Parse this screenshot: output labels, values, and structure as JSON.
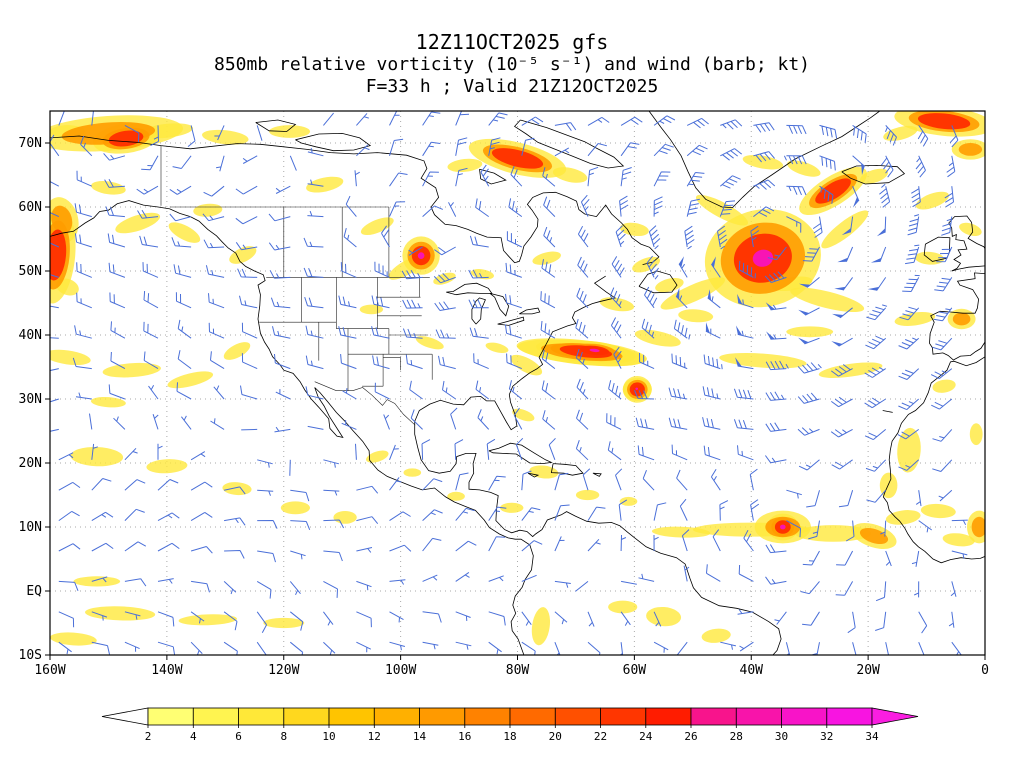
{
  "title": {
    "line1": "12Z11OCT2025 gfs",
    "line2": "850mb relative vorticity (10⁻⁵ s⁻¹) and wind (barb; kt)",
    "line3": "F=33 h ; Valid 21Z12OCT2025"
  },
  "chart_data": {
    "type": "filled_contour_map_with_wind_barbs",
    "model": "gfs",
    "init_time": "12Z11OCT2025",
    "forecast_hour": "F=33 h",
    "valid_time": "21Z12OCT2025",
    "field": "850mb relative vorticity (10⁻⁵ s⁻¹)",
    "overlay": "wind (barb; kt)",
    "lon_range": [
      -160,
      0
    ],
    "lat_range": [
      -10,
      75
    ],
    "grid": "dotted",
    "x_axis": {
      "label_ticks": [
        "160W",
        "140W",
        "120W",
        "100W",
        "80W",
        "60W",
        "40W",
        "20W",
        "0"
      ],
      "lon_values": [
        -160,
        -140,
        -120,
        -100,
        -80,
        -60,
        -40,
        -20,
        0
      ]
    },
    "y_axis": {
      "label_ticks": [
        "70N",
        "60N",
        "50N",
        "40N",
        "30N",
        "20N",
        "10N",
        "EQ",
        "10S"
      ],
      "lat_values": [
        70,
        60,
        50,
        40,
        30,
        20,
        10,
        0,
        -10
      ]
    },
    "colorbar": {
      "tick_labels": [
        "2",
        "4",
        "6",
        "8",
        "10",
        "12",
        "14",
        "16",
        "18",
        "20",
        "22",
        "24",
        "26",
        "28",
        "30",
        "32",
        "34"
      ],
      "levels": [
        2,
        4,
        6,
        8,
        10,
        12,
        14,
        16,
        18,
        20,
        22,
        24,
        26,
        28,
        30,
        32,
        34
      ],
      "segment_colors": [
        "#ffff73",
        "#fff450",
        "#ffe838",
        "#ffd81e",
        "#ffc400",
        "#ffb000",
        "#ff9a00",
        "#ff8200",
        "#ff6a00",
        "#ff5000",
        "#ff3600",
        "#ff1c00",
        "#f8148c",
        "#f814aa",
        "#f814c8",
        "#f814e1"
      ],
      "under_color": "#ffffff",
      "over_color": "#fa1ee1"
    },
    "wind_barb_color": "#4a6fd8",
    "vorticity_colors": [
      "#ffe93c",
      "#ff9c00",
      "#ff2e00",
      "#f814b4"
    ],
    "vorticity_maxima": [
      {
        "lon": -38,
        "lat": 52,
        "approx_value": 34
      },
      {
        "lon": -96.5,
        "lat": 52.4,
        "approx_value": 34
      },
      {
        "lon": -67,
        "lat": 37.5,
        "approx_value": 32
      },
      {
        "lon": -34.6,
        "lat": 10,
        "approx_value": 30
      },
      {
        "lon": -59.5,
        "lat": 31.5,
        "approx_value": 28
      },
      {
        "lon": -147,
        "lat": 70.7,
        "approx_value": 24
      },
      {
        "lon": -159,
        "lat": 52.5,
        "approx_value": 24
      },
      {
        "lon": -80,
        "lat": 67.6,
        "approx_value": 22
      },
      {
        "lon": -26,
        "lat": 62.5,
        "approx_value": 22
      },
      {
        "lon": -7,
        "lat": 73.4,
        "approx_value": 22
      }
    ],
    "features_format": "lon, lat, width_deg, height_deg, rotation_deg, intensity_level(1=yellow,2=orange,3=red,4=magenta)",
    "vorticity_features": [
      [
        -157,
        71.8,
        6,
        2,
        0,
        1
      ],
      [
        -150,
        71.5,
        16,
        3.4,
        -4,
        2
      ],
      [
        -147,
        70.7,
        6,
        2.4,
        -8,
        3
      ],
      [
        -140,
        71.9,
        9,
        2.2,
        -6,
        1
      ],
      [
        -130,
        70.9,
        8,
        2.2,
        6,
        1
      ],
      [
        -119,
        71.8,
        7,
        2,
        0,
        1
      ],
      [
        -159,
        52.5,
        3.5,
        8,
        5,
        3
      ],
      [
        -158,
        58,
        3.5,
        4.5,
        -15,
        2
      ],
      [
        -157,
        47.5,
        4,
        2.5,
        20,
        1
      ],
      [
        -145,
        57.5,
        8,
        2.4,
        -18,
        1
      ],
      [
        -137,
        56,
        6,
        2.2,
        28,
        1
      ],
      [
        -133,
        59.5,
        5,
        2,
        -5,
        1
      ],
      [
        -127,
        52.5,
        5,
        2.2,
        -25,
        1
      ],
      [
        -150,
        63,
        6,
        2,
        8,
        1
      ],
      [
        -113,
        63.5,
        6.5,
        2.2,
        -12,
        1
      ],
      [
        -104,
        57,
        6,
        2,
        -22,
        1
      ],
      [
        -99,
        50.5,
        7,
        2.2,
        -30,
        1
      ],
      [
        -96.5,
        52.4,
        3.2,
        3,
        0,
        4
      ],
      [
        -92.5,
        48.8,
        4,
        1.6,
        -18,
        1
      ],
      [
        -86,
        49.5,
        4,
        1.5,
        10,
        1
      ],
      [
        -80,
        67.6,
        9,
        2.6,
        14,
        3
      ],
      [
        -89,
        66.5,
        6,
        2,
        -6,
        1
      ],
      [
        -71,
        65,
        6,
        2.2,
        12,
        1
      ],
      [
        -75,
        52,
        5,
        1.8,
        -14,
        1
      ],
      [
        -60,
        56.5,
        5,
        2,
        8,
        1
      ],
      [
        -58,
        51,
        5,
        2,
        -20,
        1
      ],
      [
        -38,
        67,
        7,
        2,
        10,
        1
      ],
      [
        -38,
        52,
        10,
        7.6,
        -12,
        4
      ],
      [
        -50,
        46.5,
        12,
        2.6,
        -24,
        1
      ],
      [
        -27,
        45.5,
        13,
        2.6,
        14,
        1
      ],
      [
        -24,
        56.5,
        10,
        2.4,
        -38,
        1
      ],
      [
        -45,
        59.5,
        10,
        2.4,
        28,
        1
      ],
      [
        -33,
        48,
        7,
        2,
        -10,
        1
      ],
      [
        -69,
        37.2,
        22,
        3.6,
        6,
        1
      ],
      [
        -69,
        37.3,
        14,
        2.4,
        6,
        2
      ],
      [
        -68.3,
        37.4,
        9,
        1.8,
        6,
        3
      ],
      [
        -66.8,
        37.6,
        5,
        1.4,
        6,
        4
      ],
      [
        -78.5,
        35.3,
        6,
        2.2,
        28,
        1
      ],
      [
        -56,
        39.5,
        8,
        2.2,
        12,
        1
      ],
      [
        -59.5,
        31.5,
        5,
        3.6,
        0,
        1
      ],
      [
        -59.5,
        31.5,
        2.6,
        2.2,
        0,
        3
      ],
      [
        -59.6,
        31.6,
        1.3,
        1.1,
        0,
        4
      ],
      [
        -38,
        36,
        15,
        2.2,
        4,
        1
      ],
      [
        -23,
        34.5,
        11,
        2,
        -8,
        1
      ],
      [
        -30,
        40.5,
        8,
        1.7,
        0,
        1
      ],
      [
        -40,
        9.6,
        20,
        2.2,
        0,
        1
      ],
      [
        -26,
        9,
        13,
        2.6,
        0,
        1
      ],
      [
        -52,
        9.2,
        10,
        1.7,
        2,
        1
      ],
      [
        -34.6,
        10,
        6,
        3.2,
        0,
        2
      ],
      [
        -34.6,
        10,
        2.7,
        2.1,
        0,
        4
      ],
      [
        -19,
        8.6,
        5,
        2.2,
        18,
        2
      ],
      [
        -14,
        11.5,
        6,
        2.2,
        -8,
        1
      ],
      [
        -13,
        22,
        4,
        7,
        4,
        1
      ],
      [
        -16.5,
        16.5,
        3,
        4,
        0,
        1
      ],
      [
        -8,
        12.5,
        6,
        2.2,
        4,
        1
      ],
      [
        -4.5,
        8,
        5.5,
        2,
        6,
        1
      ],
      [
        -1,
        10,
        2.6,
        3.2,
        0,
        2
      ],
      [
        -1.5,
        24.5,
        2.2,
        3.4,
        0,
        1
      ],
      [
        -26,
        62.5,
        7,
        2.4,
        -32,
        3
      ],
      [
        -19,
        64.8,
        5,
        2,
        -18,
        1
      ],
      [
        -31,
        66,
        6,
        2,
        18,
        1
      ],
      [
        -9,
        61,
        6,
        2.2,
        -20,
        1
      ],
      [
        -7,
        73.4,
        9,
        2.4,
        6,
        3
      ],
      [
        -14.5,
        71.5,
        6,
        2,
        -14,
        1
      ],
      [
        -2.5,
        69,
        4,
        2,
        0,
        2
      ],
      [
        -9.5,
        52,
        5,
        2,
        4,
        1
      ],
      [
        -2.5,
        56.5,
        4,
        1.8,
        18,
        1
      ],
      [
        -12,
        42.5,
        7,
        2,
        -8,
        1
      ],
      [
        -4,
        42.5,
        3,
        2,
        0,
        2
      ],
      [
        -7,
        32,
        4,
        2,
        -10,
        1
      ],
      [
        -157,
        36.5,
        8,
        2.2,
        8,
        1
      ],
      [
        -146,
        34.5,
        10,
        2.2,
        -4,
        1
      ],
      [
        -136,
        33,
        8,
        2,
        -14,
        1
      ],
      [
        -128,
        37.5,
        5,
        2,
        -28,
        1
      ],
      [
        -150,
        29.5,
        6,
        1.6,
        4,
        1
      ],
      [
        -152,
        21,
        9,
        3,
        2,
        1
      ],
      [
        -140,
        19.5,
        7,
        2.2,
        -3,
        1
      ],
      [
        -128,
        16,
        5,
        2,
        4,
        1
      ],
      [
        -118,
        13,
        5,
        2,
        0,
        1
      ],
      [
        -109.5,
        11.5,
        4,
        2,
        0,
        1
      ],
      [
        -148,
        -3.5,
        12,
        2.2,
        2,
        1
      ],
      [
        -133,
        -4.5,
        10,
        1.7,
        -2,
        1
      ],
      [
        -152,
        1.5,
        8,
        1.6,
        0,
        1
      ],
      [
        -156,
        -7.5,
        8,
        2,
        4,
        1
      ],
      [
        -120,
        -5,
        7,
        1.6,
        0,
        1
      ],
      [
        -75.5,
        18.6,
        5,
        2,
        6,
        1
      ],
      [
        -68,
        15,
        4,
        1.6,
        0,
        1
      ],
      [
        -61,
        14,
        3,
        1.4,
        0,
        1
      ],
      [
        -81,
        13,
        4,
        1.6,
        0,
        1
      ],
      [
        -90.5,
        14.8,
        3,
        1.4,
        0,
        1
      ],
      [
        -104,
        21,
        4,
        1.6,
        -18,
        1
      ],
      [
        -98,
        18.5,
        3,
        1.3,
        0,
        1
      ],
      [
        -79,
        27.5,
        4,
        1.6,
        20,
        1
      ],
      [
        -76,
        -5.5,
        3,
        6,
        8,
        1
      ],
      [
        -55,
        -4,
        6,
        3,
        4,
        1
      ],
      [
        -46,
        -7,
        5,
        2.2,
        -6,
        1
      ],
      [
        -62,
        -2.5,
        5,
        2,
        0,
        1
      ],
      [
        -95,
        38.8,
        5,
        1.6,
        18,
        1
      ],
      [
        -83.5,
        38,
        4,
        1.4,
        14,
        1
      ],
      [
        -105,
        44,
        4,
        1.5,
        0,
        1
      ],
      [
        -63,
        44.8,
        6,
        2,
        10,
        1
      ],
      [
        -54,
        47.8,
        5,
        2,
        -14,
        1
      ],
      [
        -49.5,
        43,
        6,
        2,
        4,
        1
      ]
    ]
  }
}
